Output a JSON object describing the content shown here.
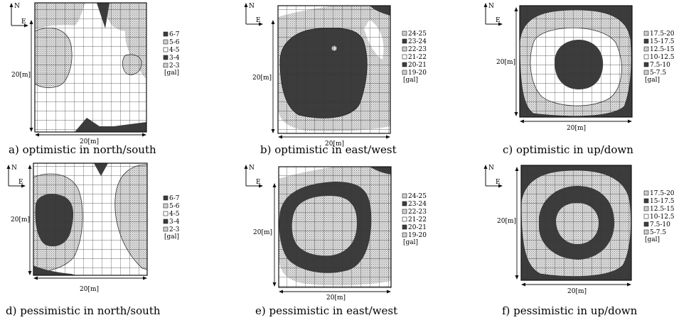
{
  "compass": {
    "north": "N",
    "east": "E"
  },
  "dimension_label": "20[m]",
  "legend_sets": {
    "north_south": {
      "items": [
        {
          "label": "6-7",
          "pattern": "dark"
        },
        {
          "label": "5-6",
          "pattern": "dot"
        },
        {
          "label": "4-5",
          "pattern": "white"
        },
        {
          "label": "3-4",
          "pattern": "dark"
        },
        {
          "label": "2-3",
          "pattern": "dot"
        }
      ],
      "unit": "[gal]"
    },
    "east_west": {
      "items": [
        {
          "label": "24-25",
          "pattern": "dot"
        },
        {
          "label": "23-24",
          "pattern": "dark"
        },
        {
          "label": "22-23",
          "pattern": "dot"
        },
        {
          "label": "21-22",
          "pattern": "white"
        },
        {
          "label": "20-21",
          "pattern": "dark"
        },
        {
          "label": "19-20",
          "pattern": "dot"
        }
      ],
      "unit": "[gal]"
    },
    "up_down": {
      "items": [
        {
          "label": "17.5-20",
          "pattern": "dot"
        },
        {
          "label": "15-17.5",
          "pattern": "dark"
        },
        {
          "label": "12.5-15",
          "pattern": "dot"
        },
        {
          "label": "10-12.5",
          "pattern": "white"
        },
        {
          "label": "7.5-10",
          "pattern": "dark"
        },
        {
          "label": "5-7.5",
          "pattern": "dot"
        }
      ],
      "unit": "[gal]"
    }
  },
  "panels": [
    {
      "id": "a",
      "caption": "a) optimistic in north/south",
      "legend": "north_south"
    },
    {
      "id": "b",
      "caption": "b) optimistic in east/west",
      "legend": "east_west"
    },
    {
      "id": "c",
      "caption": "c) optimistic in up/down",
      "legend": "up_down"
    },
    {
      "id": "d",
      "caption": "d) pessimistic in north/south",
      "legend": "north_south"
    },
    {
      "id": "e",
      "caption": "e) pessimistic in east/west",
      "legend": "east_west"
    },
    {
      "id": "f",
      "caption": "f) pessimistic in up/down",
      "legend": "up_down"
    }
  ]
}
